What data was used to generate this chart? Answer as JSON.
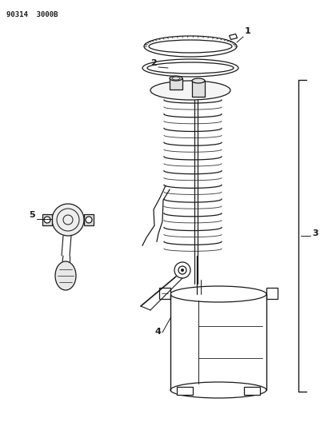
{
  "title_code": "90314  3000B",
  "background_color": "#ffffff",
  "line_color": "#1a1a1a",
  "label1": "1",
  "label2": "2",
  "label3": "3",
  "label4": "4",
  "label5": "5"
}
